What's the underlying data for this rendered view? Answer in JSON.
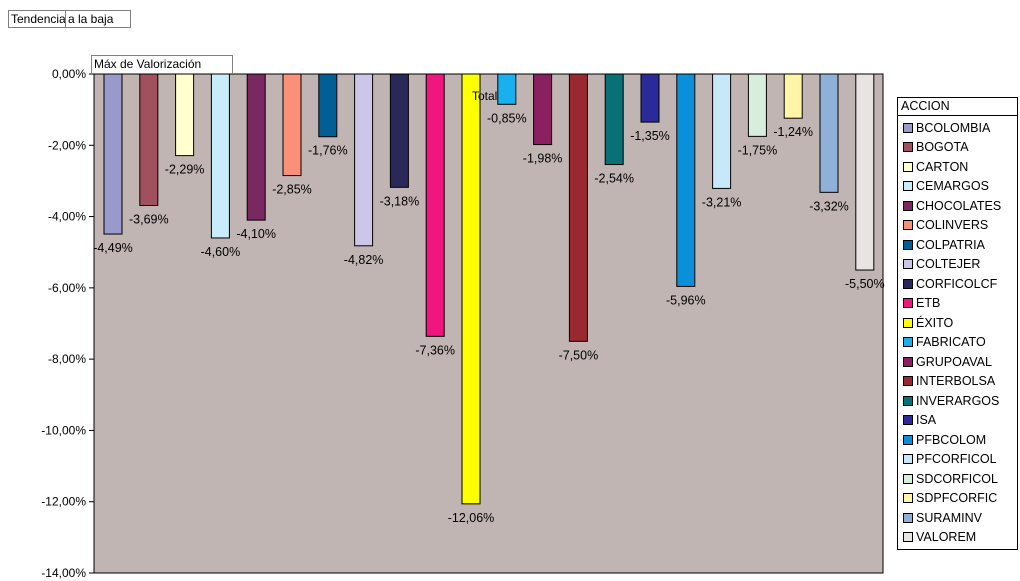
{
  "filters": {
    "page_field_label": "Tendencia",
    "page_field_value": "a la baja",
    "data_field": "Máx de Valorización"
  },
  "chart_data": {
    "type": "bar",
    "title": "",
    "category_label": "Total",
    "legend_title": "ACCION",
    "legend_placement": "right",
    "ylim": [
      -14,
      0
    ],
    "yticks": [
      0,
      -2,
      -4,
      -6,
      -8,
      -10,
      -12,
      -14
    ],
    "ytick_labels": [
      "0,00%",
      "-2,00%",
      "-4,00%",
      "-6,00%",
      "-8,00%",
      "-10,00%",
      "-12,00%",
      "-14,00%"
    ],
    "plot_background": "#C0B5B2",
    "grid": false,
    "series": [
      {
        "name": "BCOLOMBIA",
        "value": -4.49,
        "label": "-4,49%",
        "color": "#9999CC"
      },
      {
        "name": "BOGOTA",
        "value": -3.69,
        "label": "-3,69%",
        "color": "#A0505F"
      },
      {
        "name": "CARTON",
        "value": -2.29,
        "label": "-2,29%",
        "color": "#FFFFD0"
      },
      {
        "name": "CEMARGOS",
        "value": -4.6,
        "label": "-4,60%",
        "color": "#C8ECFA"
      },
      {
        "name": "CHOCOLATES",
        "value": -4.1,
        "label": "-4,10%",
        "color": "#7A2860"
      },
      {
        "name": "COLINVERS",
        "value": -2.85,
        "label": "-2,85%",
        "color": "#FA9078"
      },
      {
        "name": "COLPATRIA",
        "value": -1.76,
        "label": "-1,76%",
        "color": "#006096"
      },
      {
        "name": "COLTEJER",
        "value": -4.82,
        "label": "-4,82%",
        "color": "#CCC6E8"
      },
      {
        "name": "CORFICOLCF",
        "value": -3.18,
        "label": "-3,18%",
        "color": "#2A2858"
      },
      {
        "name": "ETB",
        "value": -7.36,
        "label": "-7,36%",
        "color": "#F0157F"
      },
      {
        "name": "ÉXITO",
        "value": -12.06,
        "label": "-12,06%",
        "color": "#FFFF00"
      },
      {
        "name": "FABRICATO",
        "value": -0.85,
        "label": "-0,85%",
        "color": "#18B0EE"
      },
      {
        "name": "GRUPOAVAL",
        "value": -1.98,
        "label": "-1,98%",
        "color": "#8A2060"
      },
      {
        "name": "INTERBOLSA",
        "value": -7.5,
        "label": "-7,50%",
        "color": "#9A2830"
      },
      {
        "name": "INVERARGOS",
        "value": -2.54,
        "label": "-2,54%",
        "color": "#0A7078"
      },
      {
        "name": "ISA",
        "value": -1.35,
        "label": "-1,35%",
        "color": "#2A2A98"
      },
      {
        "name": "PFBCOLOM",
        "value": -5.96,
        "label": "-5,96%",
        "color": "#0A90D8"
      },
      {
        "name": "PFCORFICOL",
        "value": -3.21,
        "label": "-3,21%",
        "color": "#C8E8FA"
      },
      {
        "name": "SDCORFICOL",
        "value": -1.75,
        "label": "-1,75%",
        "color": "#D8EEDC"
      },
      {
        "name": "SDPFCORFIC",
        "value": -1.24,
        "label": "-1,24%",
        "color": "#FFF4A8"
      },
      {
        "name": "SURAMINV",
        "value": -3.32,
        "label": "-3,32%",
        "color": "#90B0DA"
      },
      {
        "name": "VALOREM",
        "value": -5.5,
        "label": "-5,50%",
        "color": "#E8E4E2"
      }
    ]
  }
}
